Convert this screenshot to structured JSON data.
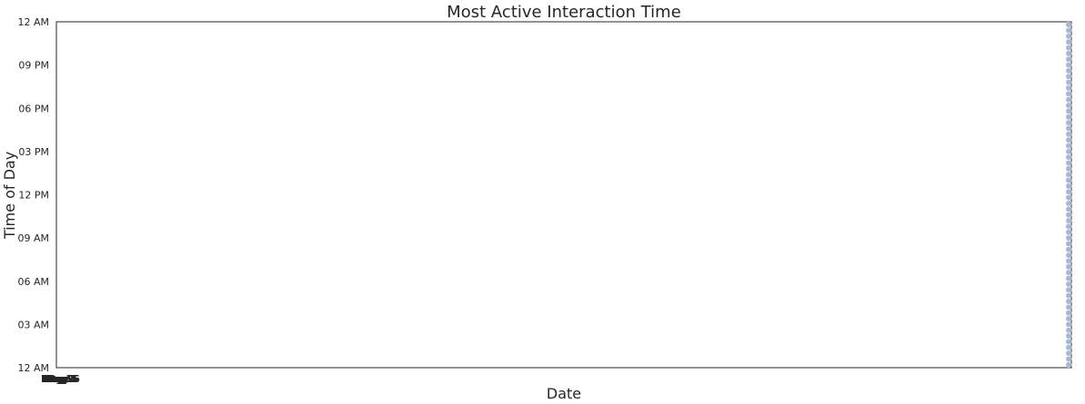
{
  "chart_data": {
    "type": "scatter",
    "title": "Most Active Interaction Time",
    "xlabel": "Date",
    "ylabel": "Time of Day",
    "y_ticks": [
      "12 AM",
      "03 AM",
      "06 AM",
      "09 AM",
      "12 PM",
      "03 PM",
      "06 PM",
      "09 PM",
      "12 AM"
    ],
    "x_ticks": [
      "Day 1",
      "Day 2",
      "Day 3",
      "Day 4",
      "Day 5",
      "Day 6"
    ],
    "ylim_hours": [
      0,
      24
    ],
    "grid": false,
    "point_color": "#4c72b0",
    "point_alpha": 0.5,
    "series": [
      {
        "points": [
          {
            "x": 1.0,
            "y": 0.2
          },
          {
            "x": 1.0,
            "y": 0.6
          },
          {
            "x": 1.0,
            "y": 1.0
          },
          {
            "x": 1.0,
            "y": 1.4
          },
          {
            "x": 1.0,
            "y": 1.8
          },
          {
            "x": 1.0,
            "y": 2.2
          },
          {
            "x": 1.0,
            "y": 2.6
          },
          {
            "x": 1.0,
            "y": 3.0
          },
          {
            "x": 1.0,
            "y": 3.4
          },
          {
            "x": 1.0,
            "y": 3.8
          },
          {
            "x": 1.0,
            "y": 4.2
          },
          {
            "x": 1.0,
            "y": 4.6
          },
          {
            "x": 1.0,
            "y": 5.0
          },
          {
            "x": 1.0,
            "y": 5.4
          },
          {
            "x": 1.0,
            "y": 5.8
          },
          {
            "x": 1.0,
            "y": 6.2
          },
          {
            "x": 1.0,
            "y": 6.6
          },
          {
            "x": 1.0,
            "y": 7.0
          },
          {
            "x": 1.0,
            "y": 7.4
          },
          {
            "x": 1.0,
            "y": 7.8
          },
          {
            "x": 1.0,
            "y": 8.2
          },
          {
            "x": 1.0,
            "y": 8.6
          },
          {
            "x": 1.0,
            "y": 9.0
          },
          {
            "x": 1.0,
            "y": 9.4
          },
          {
            "x": 1.0,
            "y": 9.8
          },
          {
            "x": 1.0,
            "y": 10.2
          },
          {
            "x": 1.0,
            "y": 10.6
          },
          {
            "x": 1.0,
            "y": 11.0
          },
          {
            "x": 1.0,
            "y": 11.4
          },
          {
            "x": 1.0,
            "y": 11.8
          },
          {
            "x": 1.0,
            "y": 12.2
          },
          {
            "x": 1.0,
            "y": 12.6
          },
          {
            "x": 1.0,
            "y": 13.0
          },
          {
            "x": 1.0,
            "y": 13.4
          },
          {
            "x": 1.0,
            "y": 13.8
          },
          {
            "x": 1.0,
            "y": 14.2
          },
          {
            "x": 1.0,
            "y": 14.6
          },
          {
            "x": 1.0,
            "y": 15.0
          },
          {
            "x": 1.0,
            "y": 15.4
          },
          {
            "x": 1.0,
            "y": 15.8
          },
          {
            "x": 1.0,
            "y": 16.2
          },
          {
            "x": 1.0,
            "y": 16.6
          },
          {
            "x": 1.0,
            "y": 17.0
          },
          {
            "x": 1.0,
            "y": 17.4
          },
          {
            "x": 1.0,
            "y": 17.8
          },
          {
            "x": 1.0,
            "y": 18.2
          },
          {
            "x": 1.0,
            "y": 18.6
          },
          {
            "x": 1.0,
            "y": 19.0
          },
          {
            "x": 1.0,
            "y": 19.4
          },
          {
            "x": 1.0,
            "y": 19.8
          },
          {
            "x": 1.0,
            "y": 20.2
          },
          {
            "x": 1.0,
            "y": 20.6
          },
          {
            "x": 1.0,
            "y": 21.0
          },
          {
            "x": 1.0,
            "y": 21.4
          },
          {
            "x": 1.0,
            "y": 21.8
          },
          {
            "x": 1.0,
            "y": 22.2
          },
          {
            "x": 1.0,
            "y": 22.6
          },
          {
            "x": 1.0,
            "y": 23.0
          },
          {
            "x": 1.0,
            "y": 23.4
          },
          {
            "x": 1.0,
            "y": 23.8
          }
        ]
      }
    ]
  }
}
